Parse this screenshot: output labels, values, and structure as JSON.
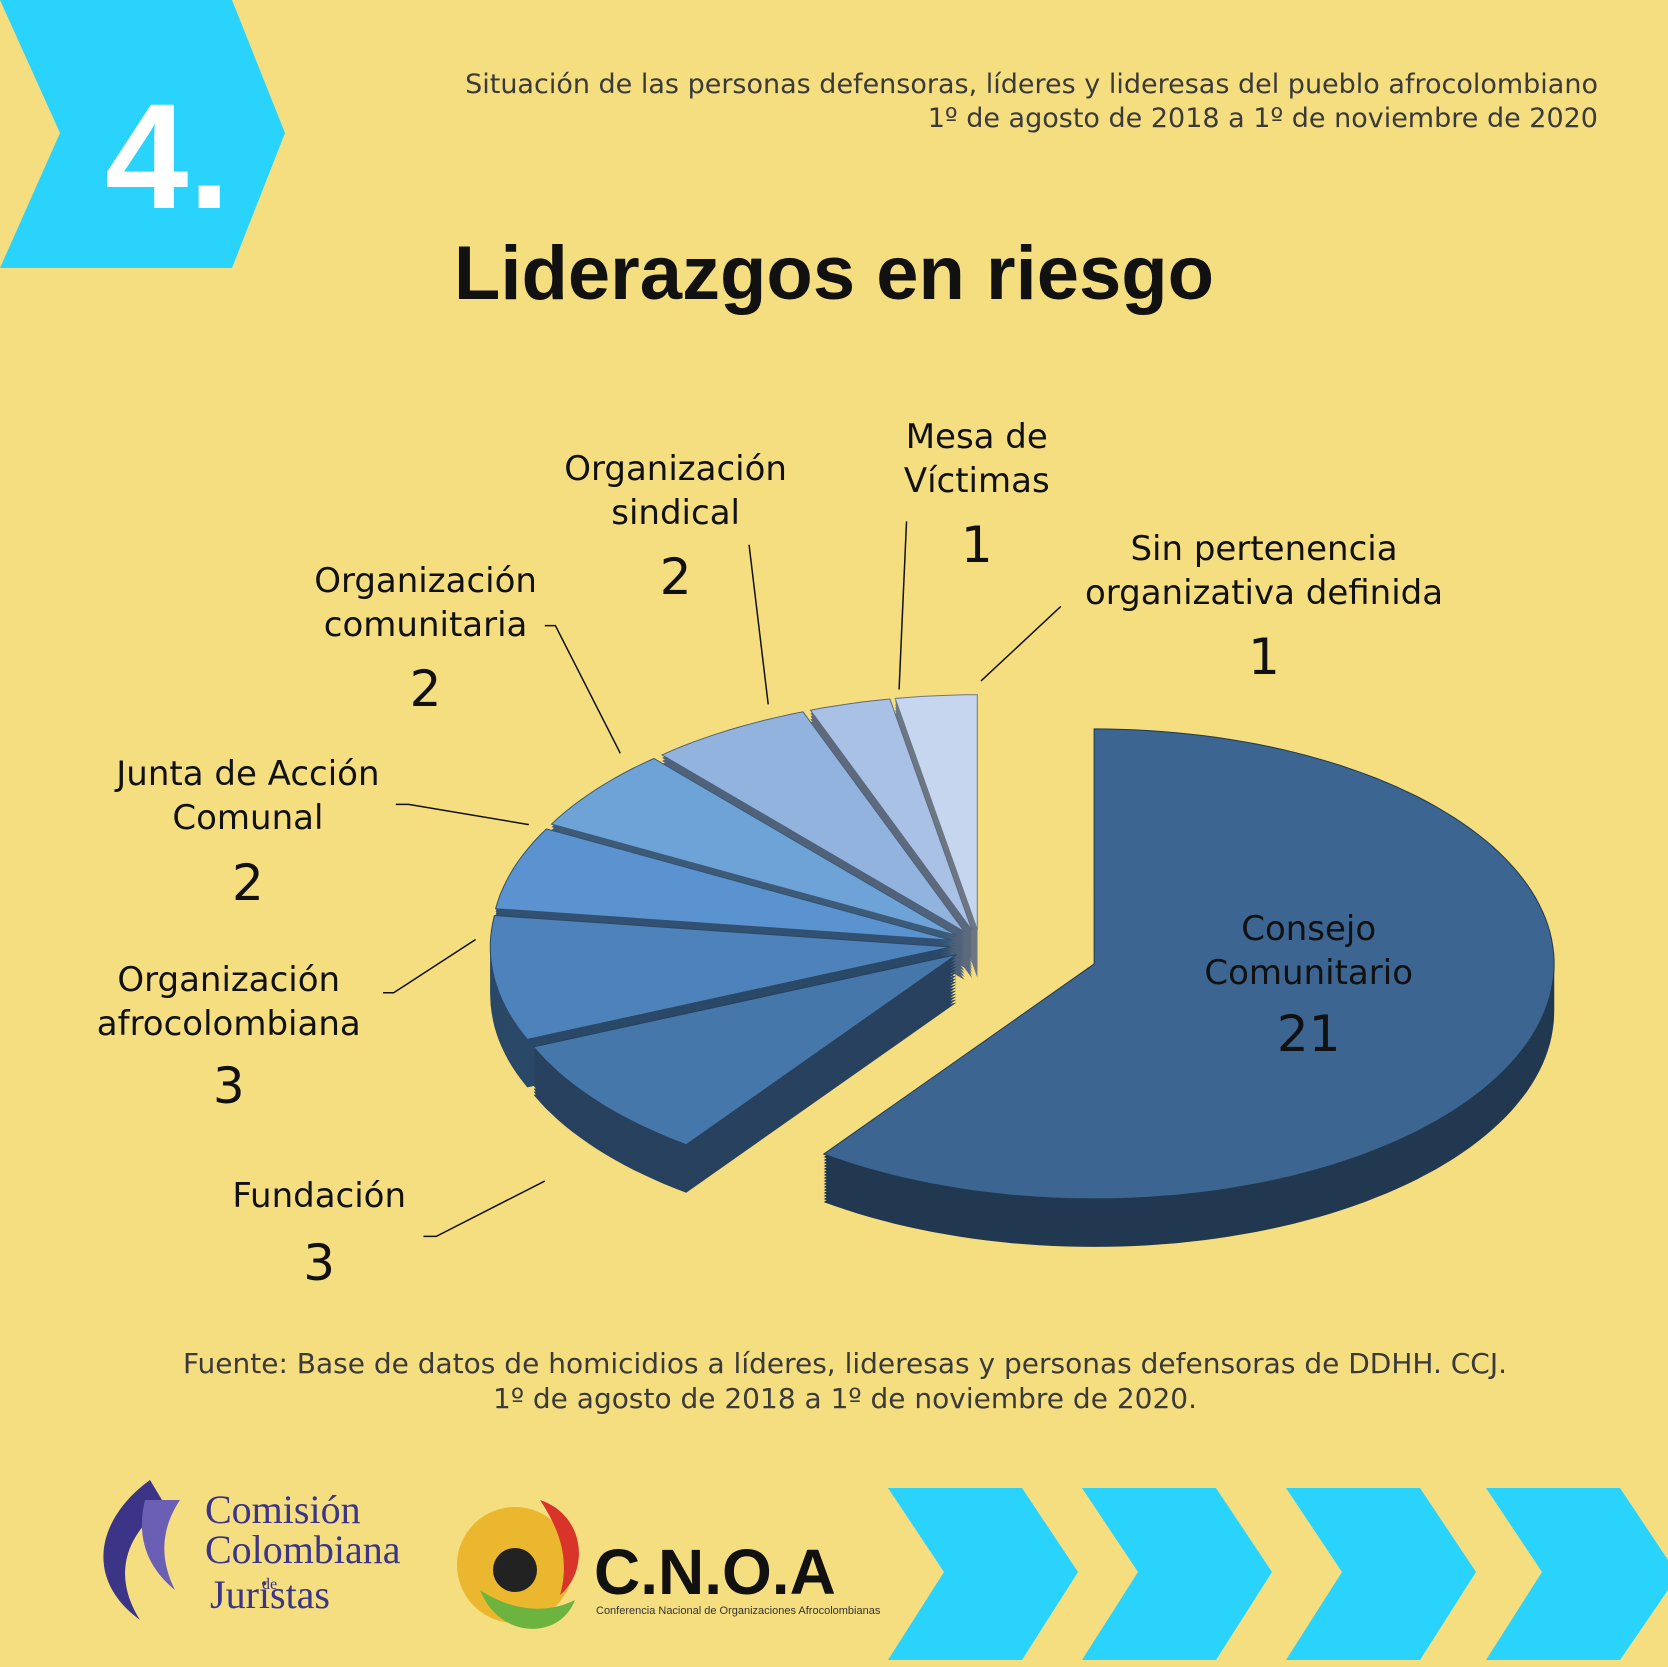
{
  "badge": "4.",
  "subtitle": [
    "Situación de las personas defensoras, líderes y lideresas del pueblo afrocolombiano",
    "1º de agosto de 2018 a 1º de noviembre de 2020"
  ],
  "chart_data": {
    "type": "pie",
    "title": "Liderazgos en riesgo",
    "categories": [
      "Consejo Comunitario",
      "Fundación",
      "Organización afrocolombiana",
      "Junta de Acción Comunal",
      "Organización comunitaria",
      "Organización sindical",
      "Mesa de Víctimas",
      "Sin pertenencia organizativa definida"
    ],
    "values": [
      21,
      3,
      3,
      2,
      2,
      2,
      1,
      1
    ],
    "colors": [
      "#3c6591",
      "#4677aa",
      "#4d82bb",
      "#5a93cf",
      "#6ea3d8",
      "#92b3de",
      "#a9c1e4",
      "#c6d6ee"
    ]
  },
  "source": [
    "Fuente: Base de datos de homicidios a líderes, lideresas y personas defensoras de DDHH. CCJ.",
    "1º de agosto de 2018 a 1º de noviembre de 2020."
  ],
  "logos": {
    "ccj": [
      "Comisión",
      "Colombiana",
      "de",
      "Juristas"
    ],
    "cnoa": "C.N.O.A",
    "cnoa_name": "Conferencia Nacional de Organizaciones Afrocolombianas"
  }
}
